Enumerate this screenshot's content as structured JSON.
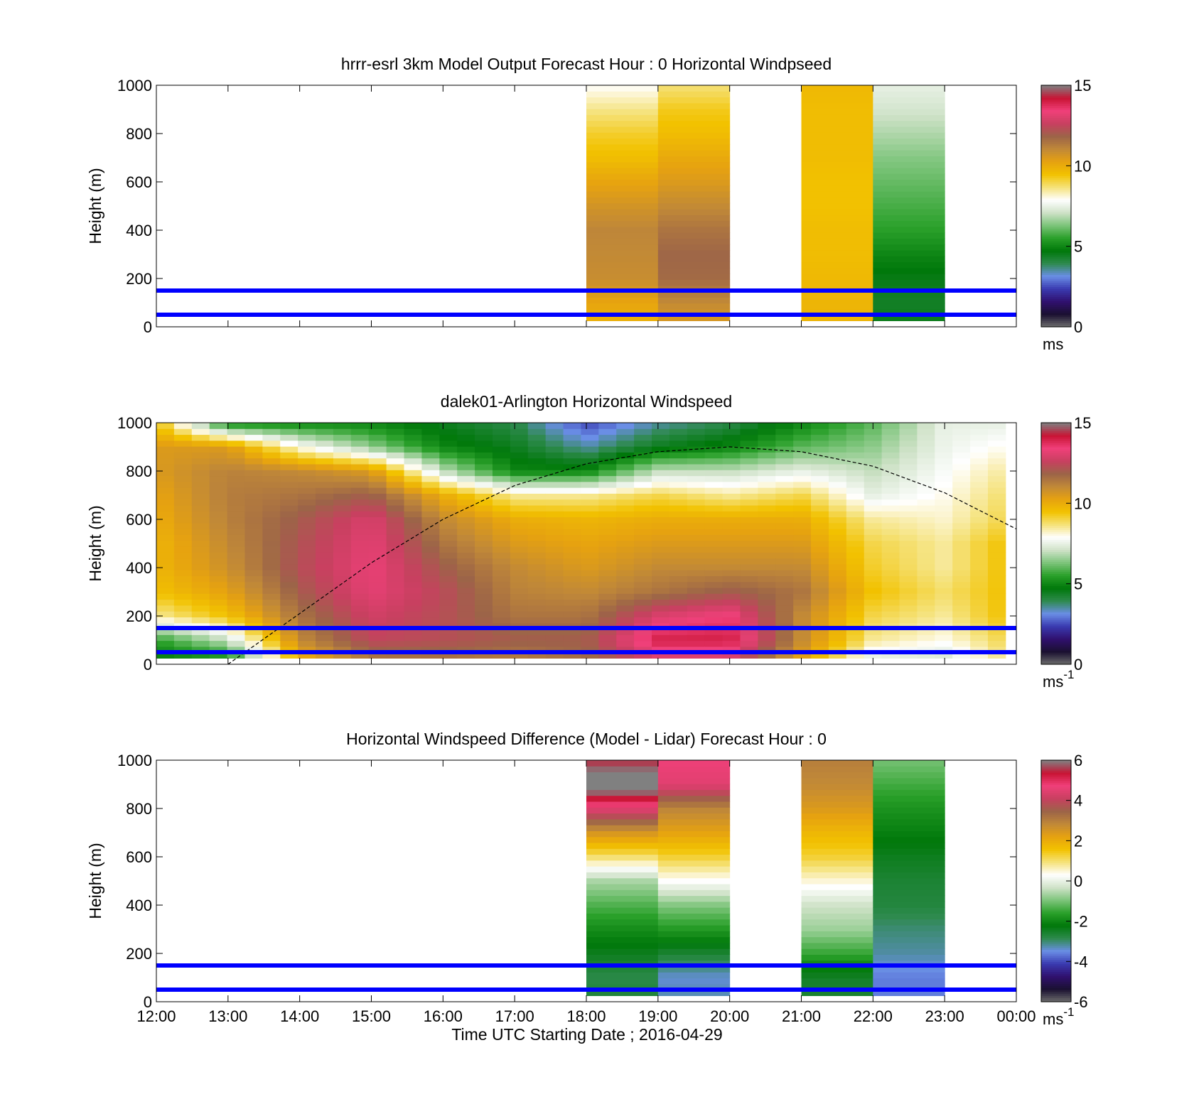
{
  "figure": {
    "xlabel": "Time UTC  Starting Date ; 2016-04-29",
    "x_ticks": [
      "12:00",
      "13:00",
      "14:00",
      "15:00",
      "16:00",
      "17:00",
      "18:00",
      "19:00",
      "20:00",
      "21:00",
      "22:00",
      "23:00",
      "00:00"
    ]
  },
  "colors": {
    "marker_line": "#0000ff",
    "colormap": [
      "#6e6e6e",
      "#1a1030",
      "#30106e",
      "#3a3ab0",
      "#6a8ee6",
      "#2e8a4e",
      "#00780a",
      "#2aa02a",
      "#7cc47a",
      "#cfe2c8",
      "#ffffff",
      "#f5e27a",
      "#f2c200",
      "#e6a210",
      "#c08838",
      "#9c6448",
      "#c84060",
      "#f0407a",
      "#c81434",
      "#808080"
    ]
  },
  "chart_data": [
    {
      "id": "model",
      "type": "heatmap",
      "title": "hrrr-esrl 3km Model Output   Forecast Hour : 0 Horizontal Windpseed",
      "ylabel": "Height (m)",
      "ylim": [
        0,
        1000
      ],
      "y_ticks": [
        0,
        200,
        400,
        600,
        800,
        1000
      ],
      "xlim": [
        12,
        24
      ],
      "colorbar": {
        "ticks": [
          "0",
          "5",
          "10",
          "15"
        ],
        "range": [
          0,
          15
        ],
        "unit": "ms",
        "unit_sup": ""
      },
      "reference_lines_m": [
        50,
        150
      ],
      "blocks": [
        {
          "start": 18,
          "end": 19,
          "col": 0
        },
        {
          "start": 19,
          "end": 20,
          "col": 1
        },
        {
          "start": 21,
          "end": 22,
          "col": 2
        },
        {
          "start": 22,
          "end": 23,
          "col": 3
        }
      ],
      "profiles": {
        "heights_m": [
          0,
          100,
          200,
          300,
          400,
          500,
          600,
          700,
          800,
          900,
          1000
        ],
        "values": [
          [
            9.8,
            10.2,
            10.9,
            11.0,
            11.1,
            10.7,
            10.2,
            9.6,
            9.2,
            8.6,
            7.9
          ],
          [
            10.4,
            11.0,
            11.7,
            11.8,
            11.5,
            11.0,
            10.5,
            10.1,
            9.6,
            9.3,
            8.7
          ],
          [
            9.8,
            9.8,
            9.7,
            9.6,
            9.6,
            9.5,
            9.5,
            9.6,
            9.6,
            9.6,
            9.7
          ],
          [
            4.6,
            4.4,
            4.6,
            5.0,
            5.5,
            5.8,
            6.1,
            6.4,
            6.8,
            7.2,
            7.5
          ]
        ]
      }
    },
    {
      "id": "lidar",
      "type": "heatmap",
      "title": "dalek01-Arlington  Horizontal Windspeed",
      "ylabel": "Height (m)",
      "ylim": [
        0,
        1000
      ],
      "y_ticks": [
        0,
        200,
        400,
        600,
        800,
        1000
      ],
      "xlim": [
        12,
        24
      ],
      "colorbar": {
        "ticks": [
          "0",
          "5",
          "10",
          "15"
        ],
        "range": [
          0,
          15
        ],
        "unit": "ms",
        "unit_sup": "-1"
      },
      "reference_lines_m": [
        50,
        150
      ],
      "curve": {
        "x": [
          13.0,
          14.0,
          15.0,
          16.0,
          17.0,
          18.0,
          19.0,
          20.0,
          21.0,
          22.0,
          23.0,
          24.0
        ],
        "y_m": [
          0,
          210,
          420,
          600,
          740,
          830,
          880,
          900,
          880,
          820,
          710,
          560
        ]
      },
      "profiles": {
        "times": [
          12.0,
          13.0,
          14.0,
          15.0,
          16.0,
          17.0,
          18.0,
          19.0,
          20.0,
          21.0,
          22.0,
          23.0,
          23.85
        ],
        "heights_m": [
          0,
          100,
          200,
          300,
          400,
          500,
          600,
          700,
          800,
          900,
          1000
        ],
        "values": [
          [
            4.5,
            5.5,
            8.5,
            9.5,
            9.8,
            9.8,
            10.0,
            10.2,
            10.5,
            10.5,
            9.5
          ],
          [
            4.5,
            7.0,
            9.5,
            10.3,
            10.8,
            11.0,
            11.2,
            11.3,
            11.2,
            10.5,
            5.0
          ],
          [
            9.5,
            11.0,
            11.5,
            12.0,
            12.3,
            12.2,
            12.0,
            11.5,
            11.0,
            8.0,
            5.0
          ],
          [
            11.0,
            12.5,
            12.8,
            13.2,
            13.3,
            13.2,
            13.0,
            12.0,
            10.5,
            6.5,
            5.0
          ],
          [
            11.2,
            12.3,
            12.3,
            12.4,
            12.0,
            11.5,
            11.0,
            10.0,
            7.0,
            5.0,
            4.5
          ],
          [
            11.0,
            12.0,
            11.5,
            11.2,
            11.0,
            10.5,
            10.0,
            8.5,
            5.0,
            4.5,
            4.0
          ],
          [
            11.5,
            12.0,
            11.5,
            11.0,
            10.5,
            10.2,
            9.8,
            8.5,
            5.0,
            3.5,
            2.5
          ],
          [
            12.5,
            14.0,
            13.0,
            11.5,
            11.0,
            10.5,
            10.0,
            9.0,
            7.0,
            4.5,
            3.5
          ],
          [
            12.5,
            14.0,
            13.5,
            12.0,
            11.0,
            10.5,
            10.0,
            8.5,
            7.0,
            5.0,
            4.0
          ],
          [
            10.0,
            11.0,
            11.0,
            11.5,
            11.0,
            10.5,
            10.0,
            9.0,
            7.5,
            6.0,
            5.0
          ],
          [
            7.0,
            8.5,
            9.0,
            9.5,
            9.2,
            9.0,
            8.5,
            7.5,
            7.0,
            6.5,
            6.0
          ],
          [
            7.0,
            8.0,
            8.5,
            8.8,
            8.5,
            8.5,
            8.2,
            8.0,
            7.8,
            7.6,
            7.5
          ],
          [
            8.5,
            9.0,
            9.5,
            9.5,
            9.5,
            9.5,
            9.0,
            8.8,
            8.5,
            8.0,
            7.5
          ]
        ]
      }
    },
    {
      "id": "difference",
      "type": "heatmap",
      "title": "Horizontal Windspeed Difference (Model - Lidar) Forecast Hour : 0",
      "ylabel": "Height (m)",
      "ylim": [
        0,
        1000
      ],
      "y_ticks": [
        0,
        200,
        400,
        600,
        800,
        1000
      ],
      "xlim": [
        12,
        24
      ],
      "colorbar": {
        "ticks": [
          "-6",
          "-4",
          "-2",
          "0",
          "2",
          "4",
          "6"
        ],
        "range": [
          -6,
          6
        ],
        "unit": "ms",
        "unit_sup": "-1"
      },
      "reference_lines_m": [
        50,
        150
      ],
      "blocks": [
        {
          "start": 18,
          "end": 19,
          "col": 0
        },
        {
          "start": 19,
          "end": 20,
          "col": 1
        },
        {
          "start": 21,
          "end": 22,
          "col": 2
        },
        {
          "start": 22,
          "end": 23,
          "col": 3
        }
      ],
      "profiles": {
        "heights_m": [
          0,
          100,
          200,
          300,
          400,
          500,
          600,
          700,
          800,
          900,
          1000
        ],
        "values": [
          [
            -2.6,
            -2.8,
            -2.4,
            -1.9,
            -1.3,
            -0.6,
            1.0,
            2.5,
            4.5,
            6.5,
            5.5
          ],
          [
            -3.2,
            -3.4,
            -2.6,
            -1.7,
            -0.9,
            0.3,
            1.3,
            2.2,
            2.9,
            4.5,
            4.7
          ],
          [
            -2.6,
            -2.5,
            -1.5,
            -0.7,
            -0.3,
            0.5,
            1.3,
            1.8,
            2.4,
            2.8,
            3.0
          ],
          [
            -3.6,
            -3.6,
            -3.2,
            -3.0,
            -2.7,
            -2.6,
            -2.4,
            -2.1,
            -1.8,
            -1.4,
            -1.0
          ]
        ]
      }
    }
  ]
}
